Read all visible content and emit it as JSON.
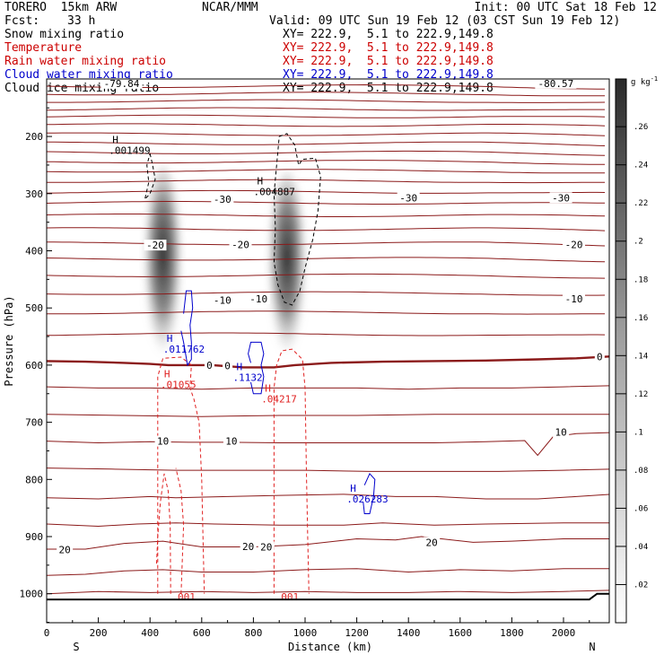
{
  "header": {
    "model": "TORERO  15km ARW",
    "center": "NCAR/MMM",
    "init": "Init: 00 UTC Sat 18 Feb 12",
    "fcst_label": "Fcst:",
    "fcst_value": "33 h",
    "valid": "Valid: 09 UTC Sun 19 Feb 12 (03 CST Sun 19 Feb 12)"
  },
  "legend": [
    {
      "name": "Snow mixing ratio",
      "xy": "XY= 222.9,  5.1 to 222.9,149.8",
      "color": "#000000"
    },
    {
      "name": "Temperature",
      "xy": "XY= 222.9,  5.1 to 222.9,149.8",
      "color": "#cc0000"
    },
    {
      "name": "Rain water mixing ratio",
      "xy": "XY= 222.9,  5.1 to 222.9,149.8",
      "color": "#cc0000"
    },
    {
      "name": "Cloud water mixing ratio",
      "xy": "XY= 222.9,  5.1 to 222.9,149.8",
      "color": "#0000cc"
    },
    {
      "name": "Cloud ice mixing ratio",
      "xy": "XY= 222.9,  5.1 to 222.9,149.8",
      "color": "#000000"
    }
  ],
  "chart_data": {
    "type": "cross-section",
    "xlabel": "Distance (km)",
    "ylabel": "Pressure (hPa)",
    "xlim": [
      0,
      2180
    ],
    "ylim": [
      1050,
      100
    ],
    "x_ticks": [
      0,
      200,
      400,
      600,
      800,
      1000,
      1200,
      1400,
      1600,
      1800,
      2000
    ],
    "y_ticks": [
      200,
      300,
      400,
      500,
      600,
      700,
      800,
      900,
      1000
    ],
    "left_end": "S",
    "right_end": "N",
    "colorbar": {
      "unit": "g kg",
      "unit_exp": "-1",
      "ticks": [
        ".02",
        ".04",
        ".06",
        ".08",
        ".1",
        ".12",
        ".14",
        ".16",
        ".18",
        ".2",
        ".22",
        ".24",
        ".26"
      ],
      "vmin": 0,
      "vmax": 0.285
    },
    "snow_plumes": [
      {
        "x_center": 450,
        "p_top": 250,
        "p_bottom": 600,
        "peak_value": 0.2
      },
      {
        "x_center": 930,
        "p_top": 260,
        "p_bottom": 600,
        "peak_value": 0.22
      }
    ],
    "temperature_labels": [
      {
        "text": "-80.57",
        "x": 1970,
        "p": 107
      },
      {
        "text": "-79.84",
        "x": 290,
        "p": 107
      },
      {
        "text": "-30",
        "x": 680,
        "p": 310
      },
      {
        "text": "-30",
        "x": 1400,
        "p": 307
      },
      {
        "text": "-30",
        "x": 1990,
        "p": 307
      },
      {
        "text": "-20",
        "x": 420,
        "p": 390
      },
      {
        "text": "-20",
        "x": 750,
        "p": 389
      },
      {
        "text": "-20",
        "x": 2040,
        "p": 389
      },
      {
        "text": "-10",
        "x": 680,
        "p": 486
      },
      {
        "text": "-10",
        "x": 820,
        "p": 484
      },
      {
        "text": "-10",
        "x": 2040,
        "p": 484
      },
      {
        "text": "0",
        "x": 630,
        "p": 600
      },
      {
        "text": "0",
        "x": 700,
        "p": 601
      },
      {
        "text": "0",
        "x": 2140,
        "p": 585
      },
      {
        "text": "10",
        "x": 450,
        "p": 733
      },
      {
        "text": "10",
        "x": 715,
        "p": 733
      },
      {
        "text": "10",
        "x": 1990,
        "p": 717
      },
      {
        "text": "20",
        "x": 70,
        "p": 923
      },
      {
        "text": "20",
        "x": 780,
        "p": 917
      },
      {
        "text": "20",
        "x": 850,
        "p": 918
      },
      {
        "text": "20",
        "x": 1490,
        "p": 910
      }
    ],
    "maxima": [
      {
        "field": "Cloud ice mixing ratio",
        "value": ".001499",
        "x": 310,
        "p": 218
      },
      {
        "field": "Cloud ice mixing ratio",
        "value": ".004887",
        "x": 870,
        "p": 290
      },
      {
        "field": "Cloud water mixing ratio",
        "value": ".011762",
        "x": 520,
        "p": 566
      },
      {
        "field": "Rain water mixing ratio",
        "value": ".01055",
        "x": 510,
        "p": 628
      },
      {
        "field": "Cloud water mixing ratio",
        "value": ".1132",
        "x": 790,
        "p": 615
      },
      {
        "field": "Rain water mixing ratio",
        "value": ".04217",
        "x": 900,
        "p": 653
      },
      {
        "field": "Cloud water mixing ratio",
        "value": ".026283",
        "x": 1230,
        "p": 828
      }
    ],
    "contour_labels": [
      {
        "field": "Rain water mixing ratio",
        "text": ".001",
        "x": 530,
        "p": 1005
      },
      {
        "field": "Rain water mixing ratio",
        "text": ".001",
        "x": 930,
        "p": 1005
      }
    ],
    "h_marker": "H",
    "temperature_levels_p": [
      112,
      125,
      138,
      152,
      165,
      180,
      196,
      212,
      228,
      244,
      260,
      278,
      297,
      316,
      338,
      362,
      387,
      414,
      443,
      474,
      508,
      546
    ],
    "colors": {
      "temperature": "#8b1a1a",
      "rain": "#e02020",
      "cloud_water": "#0000cc",
      "cloud_ice": "#000000",
      "ground": "#000000"
    }
  }
}
